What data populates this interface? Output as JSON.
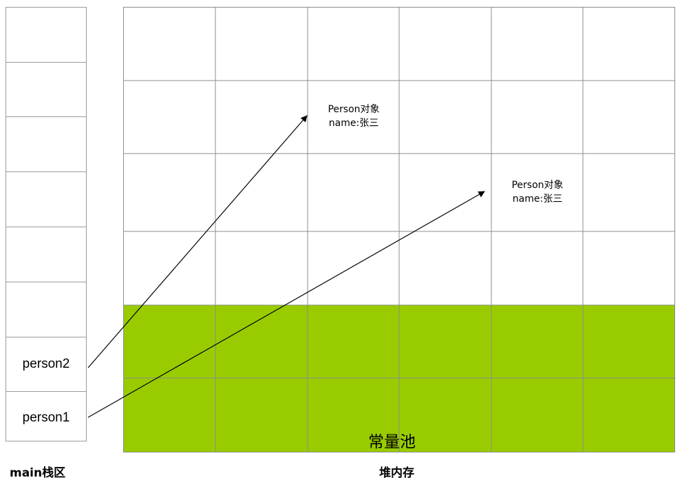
{
  "stack": {
    "caption": "main栈区",
    "slots": [
      "",
      "",
      "",
      "",
      "",
      "",
      "person2",
      "person1"
    ]
  },
  "heap": {
    "caption": "堆内存",
    "pool_label": "常量池",
    "pool_color": "#99cc00",
    "objects": [
      {
        "line1": "Person对象",
        "line2": "name:张三"
      },
      {
        "line1": "Person对象",
        "line2": "name:张三"
      }
    ]
  },
  "colors": {
    "grid": "#8c8c8c",
    "arrow": "#000000"
  }
}
